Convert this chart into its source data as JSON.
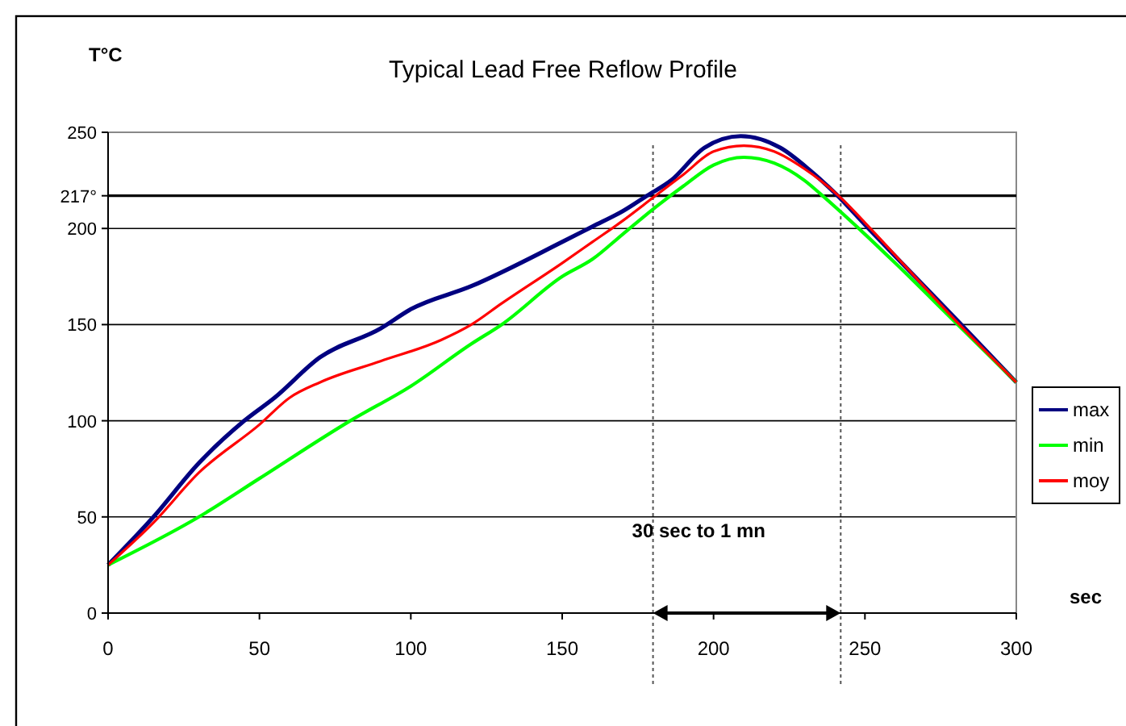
{
  "chart_data": {
    "type": "line",
    "title": "Typical Lead Free Reflow Profile",
    "xlabel": "sec",
    "ylabel": "T°C",
    "xlim": [
      0,
      300
    ],
    "xticks": [
      0,
      50,
      100,
      150,
      200,
      250,
      300
    ],
    "ylim": [
      0,
      250
    ],
    "yticks": [
      0,
      50,
      100,
      150,
      200,
      {
        "value": 217,
        "label": "217°"
      },
      250
    ],
    "grid": "y",
    "legend": "right",
    "line_style": "solid",
    "marker": "none",
    "ref_lines": [
      {
        "axis": "y",
        "value": 217,
        "line_style": "solid",
        "color": "#000000"
      },
      {
        "axis": "x",
        "value": 180,
        "line_style": "dotted",
        "color": "#555555"
      },
      {
        "axis": "x",
        "value": 242,
        "line_style": "dotted",
        "color": "#555555"
      }
    ],
    "annotations": [
      "30 sec to 1 mn"
    ],
    "series": [
      {
        "name": "max",
        "color": "#000080",
        "x": [
          0,
          15,
          30,
          45,
          55,
          70,
          90,
          100,
          120,
          150,
          160,
          170,
          178,
          186,
          197,
          209,
          222,
          232,
          241,
          250,
          280,
          300
        ],
        "values": [
          25,
          50,
          78,
          100,
          112,
          133,
          148,
          158,
          170,
          193,
          201,
          209,
          217,
          225,
          242,
          248,
          242,
          230,
          217,
          202,
          153,
          120
        ]
      },
      {
        "name": "min",
        "color": "#00ff00",
        "x": [
          0,
          30,
          50,
          80,
          100,
          120,
          130,
          150,
          160,
          170,
          180,
          190,
          200,
          210,
          220,
          230,
          236,
          250,
          260,
          280,
          300
        ],
        "values": [
          25,
          50,
          70,
          100,
          118,
          140,
          150,
          175,
          184,
          197,
          210,
          222,
          233,
          237,
          234,
          225,
          217,
          197,
          182,
          151,
          120
        ]
      },
      {
        "name": "moy",
        "color": "#ff0000",
        "x": [
          0,
          15,
          30,
          50,
          60,
          70,
          90,
          110,
          120,
          130,
          150,
          160,
          170,
          180,
          190,
          200,
          210,
          220,
          230,
          242,
          250,
          280,
          300
        ],
        "values": [
          25,
          47,
          73,
          98,
          112,
          120,
          131,
          142,
          150,
          161,
          182,
          193,
          204,
          216,
          228,
          240,
          243,
          240,
          231,
          216,
          203,
          152,
          120
        ]
      }
    ]
  }
}
